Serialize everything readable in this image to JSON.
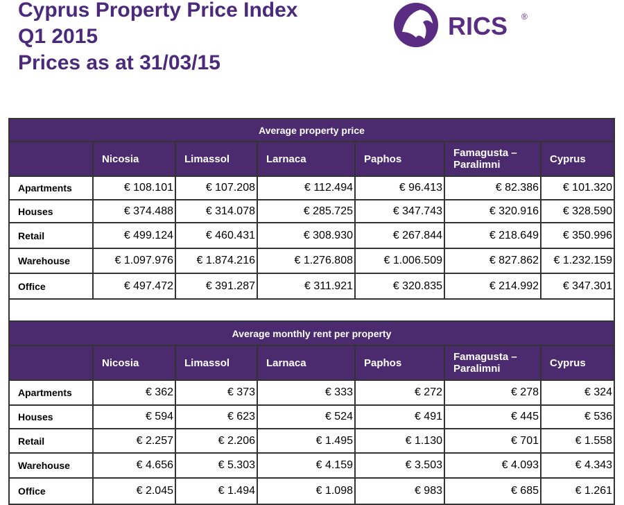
{
  "header": {
    "title_lines": [
      "Cyprus Property Price Index",
      "Q1 2015",
      "Prices as at 31/03/15"
    ],
    "logo_text": "RICS",
    "logo_mark": "®"
  },
  "tables": [
    {
      "title": "Average property price",
      "columns": [
        "Nicosia",
        "Limassol",
        "Larnaca",
        "Paphos",
        "Famagusta – Paralimni",
        "Cyprus"
      ],
      "rows": [
        {
          "label": "Apartments",
          "values": [
            "€ 108.101",
            "€ 107.208",
            "€ 112.494",
            "€ 96.413",
            "€ 82.386",
            "€ 101.320"
          ]
        },
        {
          "label": "Houses",
          "values": [
            "€ 374.488",
            "€ 314.078",
            "€ 285.725",
            "€ 347.743",
            "€ 320.916",
            "€ 328.590"
          ]
        },
        {
          "label": "Retail",
          "values": [
            "€ 499.124",
            "€ 460.431",
            "€ 308.930",
            "€ 267.844",
            "€ 218.649",
            "€ 350.996"
          ]
        },
        {
          "label": "Warehouse",
          "values": [
            "€ 1.097.976",
            "€ 1.874.216",
            "€ 1.276.808",
            "€ 1.006.509",
            "€ 827.862",
            "€ 1.232.159"
          ]
        },
        {
          "label": "Office",
          "values": [
            "€ 497.472",
            "€ 391.287",
            "€ 311.921",
            "€ 320.835",
            "€ 214.992",
            "€ 347.301"
          ]
        }
      ]
    },
    {
      "title": "Average monthly rent per property",
      "columns": [
        "Nicosia",
        "Limassol",
        "Larnaca",
        "Paphos",
        "Famagusta – Paralimni",
        "Cyprus"
      ],
      "rows": [
        {
          "label": "Apartments",
          "values": [
            "€ 362",
            "€ 373",
            "€ 333",
            "€ 272",
            "€ 278",
            "€ 324"
          ]
        },
        {
          "label": "Houses",
          "values": [
            "€ 594",
            "€ 623",
            "€ 524",
            "€ 491",
            "€ 445",
            "€ 536"
          ]
        },
        {
          "label": "Retail",
          "values": [
            "€ 2.257",
            "€ 2.206",
            "€ 1.495",
            "€ 1.130",
            "€ 701",
            "€ 1.558"
          ]
        },
        {
          "label": "Warehouse",
          "values": [
            "€ 4.656",
            "€ 5.303",
            "€ 4.159",
            "€ 3.503",
            "€ 4.093",
            "€ 4.343"
          ]
        },
        {
          "label": "Office",
          "values": [
            "€ 2.045",
            "€ 1.494",
            "€ 1.098",
            "€ 983",
            "€ 685",
            "€ 1.261"
          ]
        }
      ]
    }
  ]
}
